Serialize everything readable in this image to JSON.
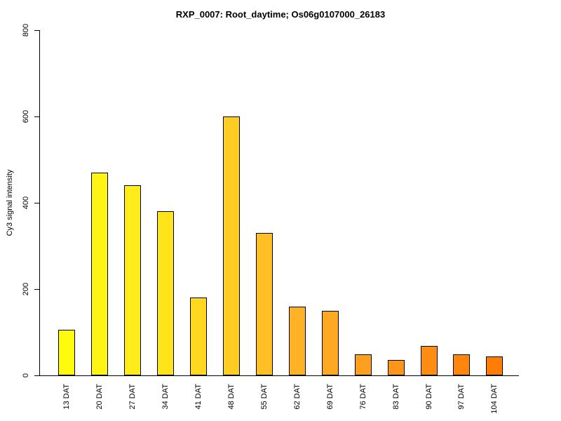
{
  "chart_data": {
    "type": "bar",
    "title": "RXP_0007: Root_daytime; Os06g0107000_26183",
    "ylabel": "Cy3 signal intensity",
    "xlabel": "",
    "categories": [
      "13 DAT",
      "20 DAT",
      "27 DAT",
      "34 DAT",
      "41 DAT",
      "48 DAT",
      "55 DAT",
      "62 DAT",
      "69 DAT",
      "76 DAT",
      "83 DAT",
      "90 DAT",
      "97 DAT",
      "104 DAT"
    ],
    "values": [
      105,
      470,
      440,
      380,
      180,
      600,
      330,
      160,
      150,
      48,
      35,
      68,
      49,
      44
    ],
    "bar_colors": [
      "#FFFB0F",
      "#FFF414",
      "#FFEC18",
      "#FFE31B",
      "#FFD81F",
      "#FFCC22",
      "#FFBF25",
      "#FFB226",
      "#FFA824",
      "#FF9F20",
      "#FF961B",
      "#FF8D14",
      "#FF850C",
      "#FF7D04"
    ],
    "ylim": [
      0,
      800
    ],
    "yticks": [
      0,
      200,
      400,
      600,
      800
    ],
    "grid": false,
    "legend": false,
    "bar_border_color": "#000000",
    "axis_color": "#000000",
    "background": "#FFFFFF"
  }
}
